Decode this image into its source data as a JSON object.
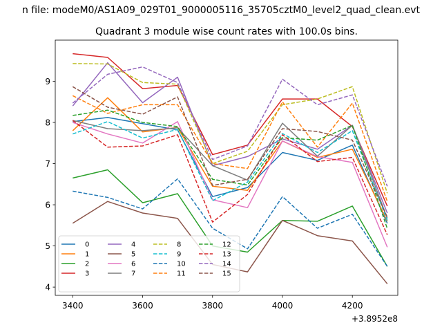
{
  "chart_data": {
    "type": "line",
    "suptitle": "n file: modeM0/AS1A09_029T01_9000005116_35705cztM0_level2_quad_clean.evt",
    "title": "Quadrant 3 module wise count rates with 100.0s bins.",
    "xlabel": "",
    "ylabel": "",
    "x_offset_label": "+3.8952e8",
    "x": [
      3400,
      3500,
      3600,
      3700,
      3800,
      3900,
      4000,
      4100,
      4200,
      4300
    ],
    "xlim": [
      3350,
      4330
    ],
    "ylim": [
      3.8,
      10.0
    ],
    "xticks": [
      3400,
      3600,
      3800,
      4000,
      4200
    ],
    "yticks": [
      4,
      5,
      6,
      7,
      8,
      9
    ],
    "legend_position": "lower-left",
    "legend_columns": 4,
    "series": [
      {
        "name": "0",
        "color": "#1f77b4",
        "dash": "solid",
        "values": [
          8.02,
          8.12,
          7.97,
          7.82,
          6.2,
          6.42,
          7.27,
          7.08,
          7.45,
          5.55
        ]
      },
      {
        "name": "1",
        "color": "#ff7f0e",
        "dash": "solid",
        "values": [
          7.8,
          8.6,
          7.77,
          7.88,
          6.45,
          6.35,
          7.55,
          7.15,
          7.35,
          5.6
        ]
      },
      {
        "name": "2",
        "color": "#2ca02c",
        "dash": "solid",
        "values": [
          6.65,
          6.85,
          6.05,
          6.27,
          5.0,
          4.85,
          5.62,
          5.6,
          5.97,
          4.5
        ]
      },
      {
        "name": "3",
        "color": "#d62728",
        "dash": "solid",
        "values": [
          9.67,
          9.58,
          8.82,
          8.9,
          7.22,
          7.45,
          8.57,
          8.57,
          7.9,
          5.97
        ]
      },
      {
        "name": "4",
        "color": "#9467bd",
        "dash": "solid",
        "values": [
          8.4,
          9.45,
          8.48,
          9.1,
          6.95,
          7.17,
          7.6,
          7.35,
          7.93,
          5.8
        ]
      },
      {
        "name": "5",
        "color": "#8c564b",
        "dash": "solid",
        "values": [
          5.55,
          6.08,
          5.8,
          5.67,
          4.55,
          4.37,
          5.62,
          5.25,
          5.12,
          4.08
        ]
      },
      {
        "name": "6",
        "color": "#e377c2",
        "dash": "solid",
        "values": [
          8.0,
          7.72,
          7.5,
          8.02,
          6.12,
          5.93,
          7.55,
          7.17,
          7.03,
          4.97
        ]
      },
      {
        "name": "7",
        "color": "#7f7f7f",
        "dash": "solid",
        "values": [
          8.05,
          7.85,
          7.8,
          7.87,
          6.95,
          6.6,
          7.98,
          7.18,
          7.93,
          5.67
        ]
      },
      {
        "name": "8",
        "color": "#bcbd22",
        "dash": "dashed",
        "values": [
          9.43,
          9.42,
          8.97,
          8.93,
          7.0,
          7.3,
          8.43,
          8.57,
          8.87,
          6.28
        ]
      },
      {
        "name": "9",
        "color": "#17becf",
        "dash": "dashed",
        "values": [
          7.72,
          8.02,
          7.62,
          7.83,
          6.1,
          6.55,
          7.73,
          7.27,
          7.8,
          5.62
        ]
      },
      {
        "name": "10",
        "color": "#1f77b4",
        "dash": "dashed",
        "values": [
          6.33,
          6.18,
          5.9,
          6.63,
          5.43,
          4.93,
          6.2,
          5.43,
          5.77,
          4.5
        ]
      },
      {
        "name": "11",
        "color": "#ff7f0e",
        "dash": "dashed",
        "values": [
          8.65,
          8.22,
          8.43,
          8.43,
          7.0,
          6.88,
          8.5,
          7.4,
          8.47,
          6.08
        ]
      },
      {
        "name": "12",
        "color": "#2ca02c",
        "dash": "dashed",
        "values": [
          8.17,
          8.3,
          8.0,
          7.9,
          6.62,
          6.48,
          7.63,
          7.57,
          7.93,
          5.42
        ]
      },
      {
        "name": "13",
        "color": "#d62728",
        "dash": "dashed",
        "values": [
          8.05,
          7.4,
          7.43,
          7.7,
          5.58,
          6.25,
          7.7,
          7.05,
          7.15,
          5.27
        ]
      },
      {
        "name": "14",
        "color": "#9467bd",
        "dash": "dashed",
        "values": [
          8.47,
          9.17,
          9.35,
          8.97,
          7.1,
          7.43,
          9.05,
          8.43,
          8.67,
          6.45
        ]
      },
      {
        "name": "15",
        "color": "#8c564b",
        "dash": "dashed",
        "values": [
          8.87,
          8.37,
          8.2,
          8.62,
          6.47,
          6.62,
          7.85,
          7.78,
          7.57,
          5.7
        ]
      }
    ]
  }
}
